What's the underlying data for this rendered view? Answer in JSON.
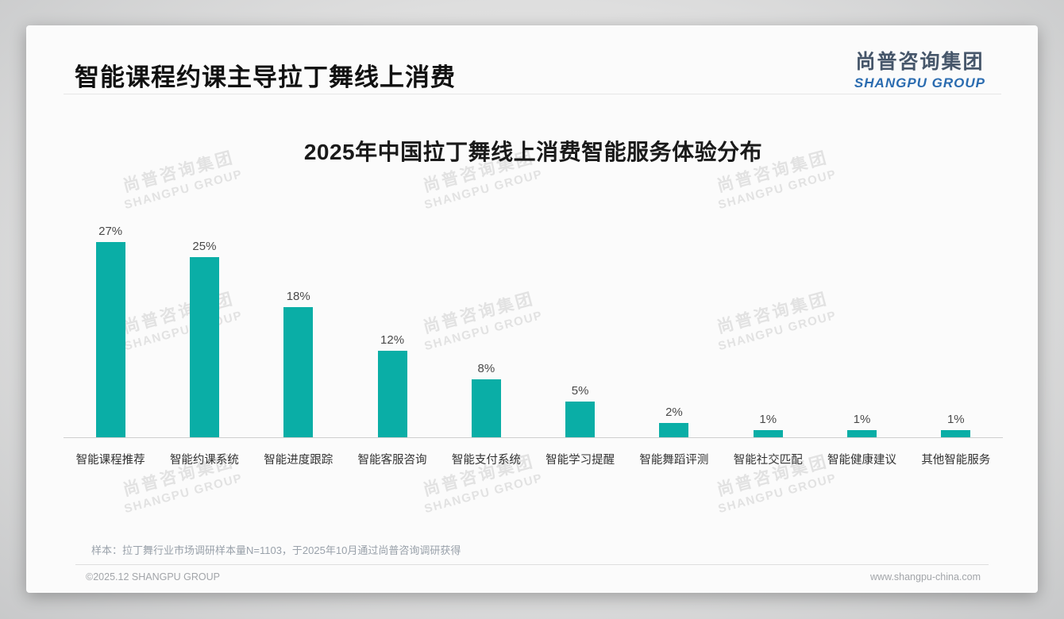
{
  "page": {
    "header": {
      "title": "智能课程约课主导拉丁舞线上消费",
      "logo": {
        "cn": "尚普咨询集团",
        "en": "SHANGPU GROUP"
      }
    },
    "watermark": {
      "cn": "尚普咨询集团",
      "en": "SHANGPU GROUP"
    },
    "footer": {
      "note": "样本：拉丁舞行业市场调研样本量N=1103，于2025年10月通过尚普咨询调研获得",
      "copyright": "©2025.12 SHANGPU GROUP",
      "website": "www.shangpu-china.com"
    }
  },
  "chart_data": {
    "type": "bar",
    "title": "2025年中国拉丁舞线上消费智能服务体验分布",
    "categories": [
      "智能课程推荐",
      "智能约课系统",
      "智能进度跟踪",
      "智能客服咨询",
      "智能支付系统",
      "智能学习提醒",
      "智能舞蹈评测",
      "智能社交匹配",
      "智能健康建议",
      "其他智能服务"
    ],
    "values": [
      27,
      25,
      18,
      12,
      8,
      5,
      2,
      1,
      1,
      1
    ],
    "data_labels": [
      "27%",
      "25%",
      "18%",
      "12%",
      "8%",
      "5%",
      "2%",
      "1%",
      "1%",
      "1%"
    ],
    "unit": "%",
    "ylim": [
      0,
      30
    ],
    "bar_color": "#0aaea6",
    "grid": false,
    "legend": "none",
    "xlabel": "",
    "ylabel": ""
  }
}
